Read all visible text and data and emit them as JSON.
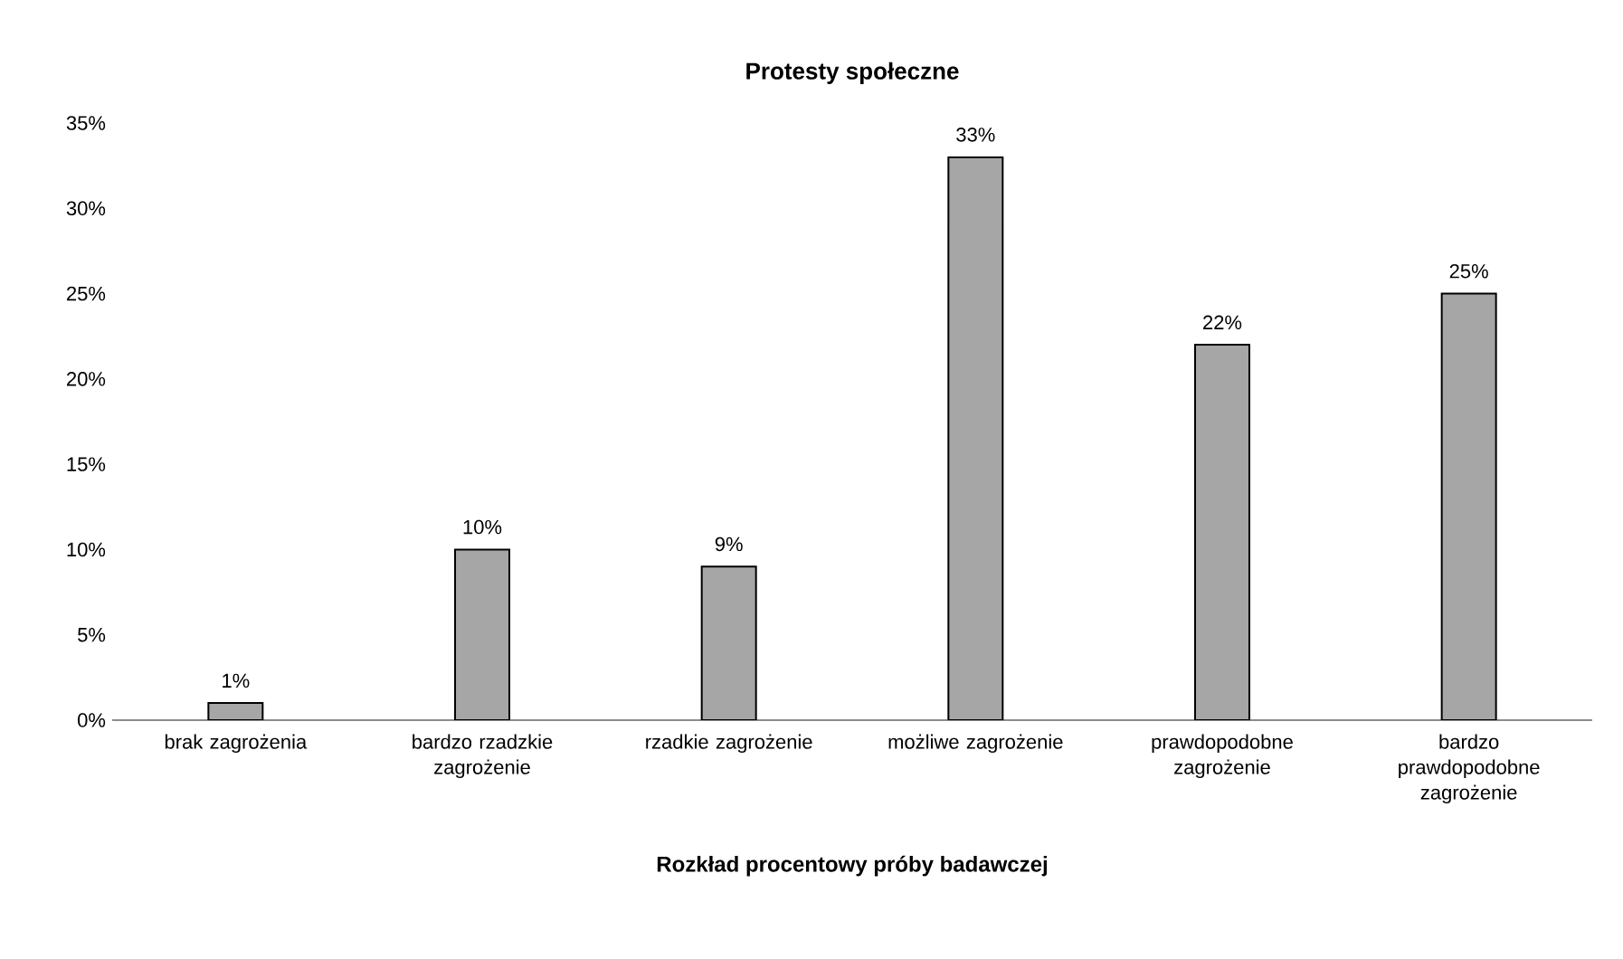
{
  "chart_data": {
    "type": "bar",
    "title": "Protesty społeczne",
    "xlabel": "Rozkład procentowy próby badawczej",
    "categories": [
      "brak zagrożenia",
      "bardzo rzadzkie zagrożenie",
      "rzadkie zagrożenie",
      "możliwe zagrożenie",
      "prawdopodobne zagrożenie",
      "bardzo prawdopodobne zagrożenie"
    ],
    "values": [
      1,
      10,
      9,
      33,
      22,
      25
    ],
    "value_labels": [
      "1%",
      "10%",
      "9%",
      "33%",
      "22%",
      "25%"
    ],
    "color": "#a6a6a6",
    "ylim": [
      0,
      35
    ],
    "yticks": [
      {
        "value": 0,
        "label": "0%"
      },
      {
        "value": 5,
        "label": "5%"
      },
      {
        "value": 10,
        "label": "10%"
      },
      {
        "value": 15,
        "label": "15%"
      },
      {
        "value": 20,
        "label": "20%"
      },
      {
        "value": 25,
        "label": "25%"
      },
      {
        "value": 30,
        "label": "30%"
      },
      {
        "value": 35,
        "label": "35%"
      }
    ]
  }
}
